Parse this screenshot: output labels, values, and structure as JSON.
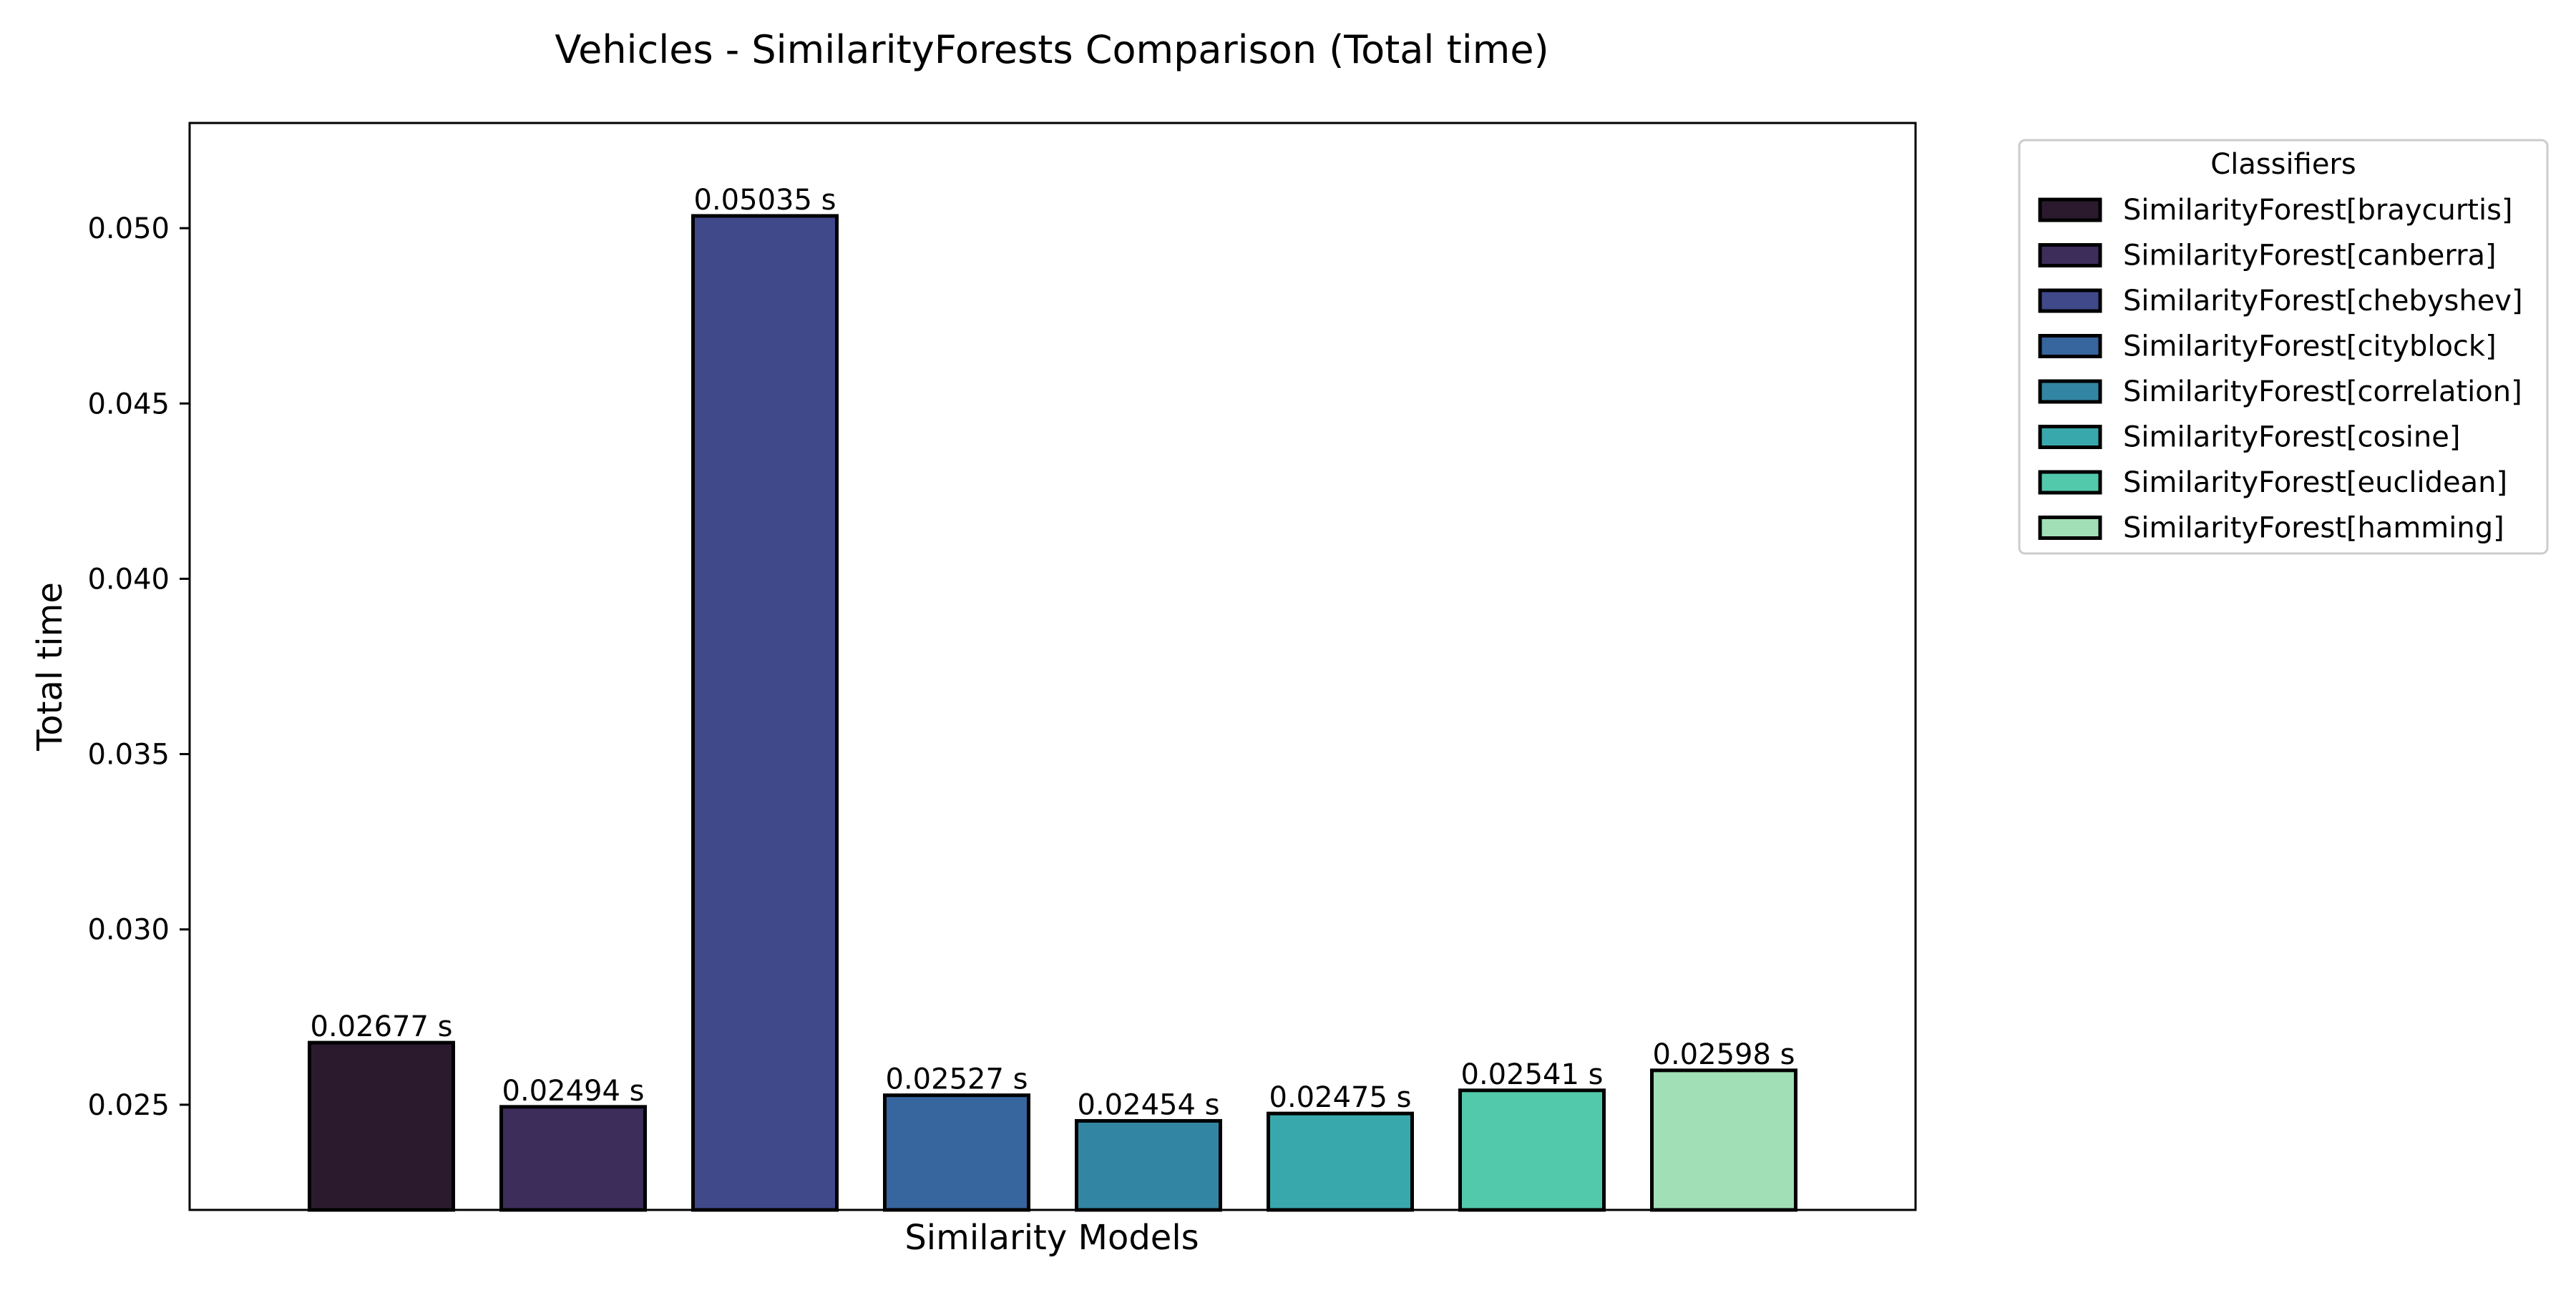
{
  "chart_data": {
    "type": "bar",
    "title": "Vehicles - SimilarityForests Comparison (Total time)",
    "xlabel": "Similarity Models",
    "ylabel": "Total time",
    "ylim": [
      0.022,
      0.053
    ],
    "yticks": [
      0.025,
      0.03,
      0.035,
      0.04,
      0.045,
      0.05
    ],
    "ytick_labels": [
      "0.025",
      "0.030",
      "0.035",
      "0.040",
      "0.045",
      "0.050"
    ],
    "grid": false,
    "legend": {
      "title": "Classifiers",
      "placement": "outside upper right"
    },
    "series": [
      {
        "name": "SimilarityForest[braycurtis]",
        "value": 0.02677,
        "label": "0.02677 s",
        "color": "#2b1a2e"
      },
      {
        "name": "SimilarityForest[canberra]",
        "value": 0.02494,
        "label": "0.02494 s",
        "color": "#3c2d5b"
      },
      {
        "name": "SimilarityForest[chebyshev]",
        "value": 0.05035,
        "label": "0.05035 s",
        "color": "#40498a"
      },
      {
        "name": "SimilarityForest[cityblock]",
        "value": 0.02527,
        "label": "0.02527 s",
        "color": "#37659d"
      },
      {
        "name": "SimilarityForest[correlation]",
        "value": 0.02454,
        "label": "0.02454 s",
        "color": "#3386a3"
      },
      {
        "name": "SimilarityForest[cosine]",
        "value": 0.02475,
        "label": "0.02475 s",
        "color": "#39a8ad"
      },
      {
        "name": "SimilarityForest[euclidean]",
        "value": 0.02541,
        "label": "0.02541 s",
        "color": "#53c9ab"
      },
      {
        "name": "SimilarityForest[hamming]",
        "value": 0.02598,
        "label": "0.02598 s",
        "color": "#a1dfb6"
      }
    ]
  }
}
